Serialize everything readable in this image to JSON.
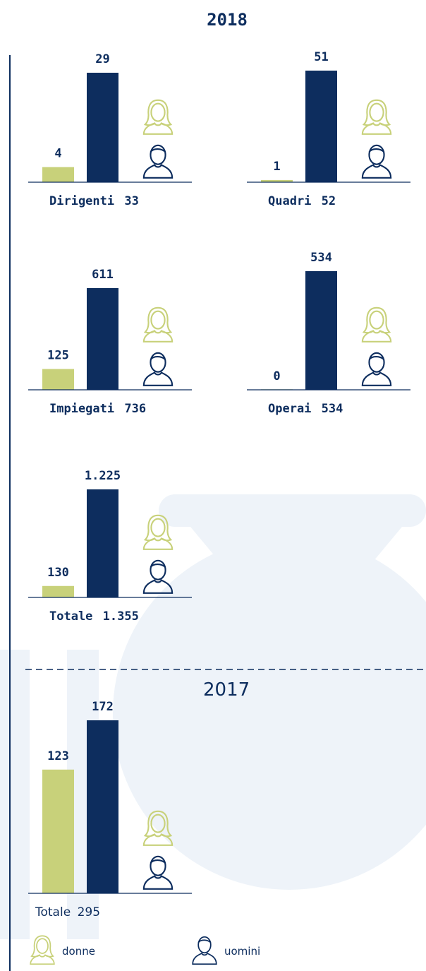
{
  "year_2018": "2018",
  "year_2017": "2017",
  "legend": [
    {
      "name": "donne",
      "color": "#c8d17a"
    },
    {
      "name": "uomini",
      "color": "#0d2d5e"
    }
  ],
  "chart_data": [
    {
      "type": "bar",
      "label": "Dirigenti",
      "total": 33,
      "values": [
        4,
        29
      ]
    },
    {
      "type": "bar",
      "label": "Quadri",
      "total": 52,
      "values": [
        1,
        51
      ]
    },
    {
      "type": "bar",
      "label": "Impiegati",
      "total": 736,
      "values": [
        125,
        611
      ]
    },
    {
      "type": "bar",
      "label": "Operai",
      "total": 534,
      "values": [
        0,
        534
      ]
    },
    {
      "type": "bar",
      "label": "Totale",
      "total": 1355,
      "total_label": "1.355",
      "values": [
        130,
        1225
      ],
      "value_labels": [
        "130",
        "1.225"
      ]
    },
    {
      "type": "bar",
      "label": "Totale",
      "total": 295,
      "values": [
        123,
        172
      ]
    }
  ]
}
